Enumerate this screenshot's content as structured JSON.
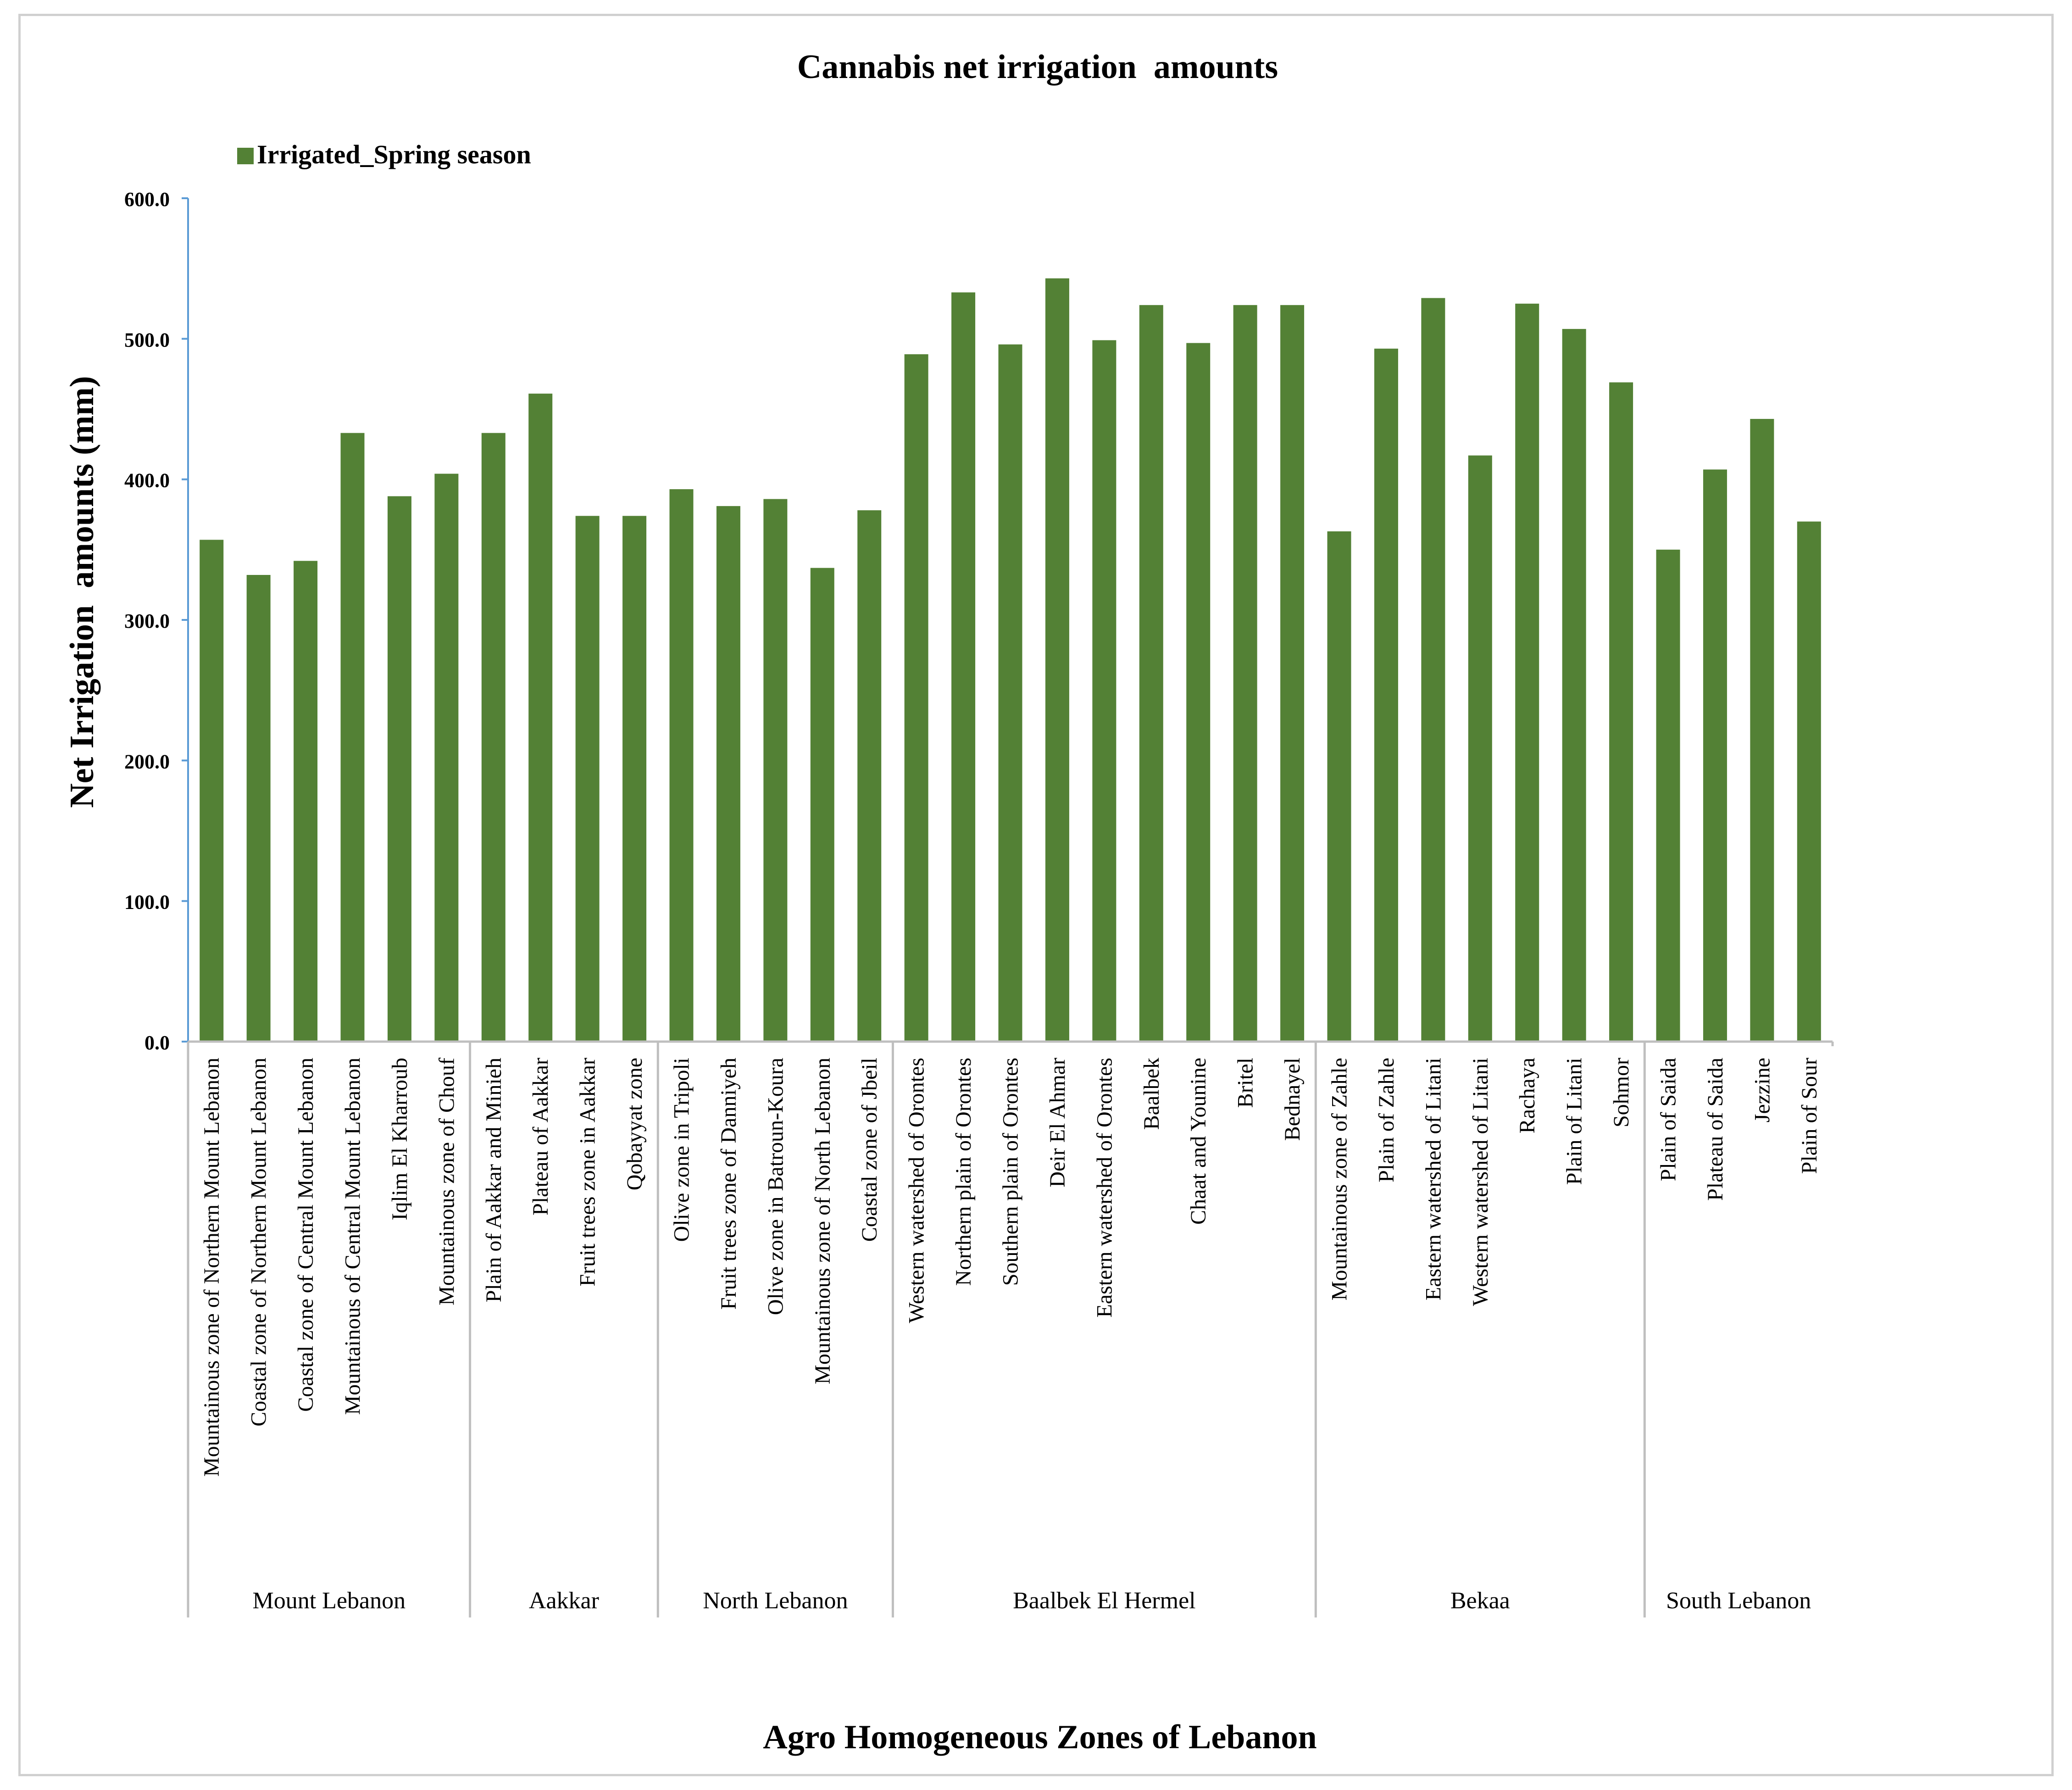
{
  "chart_data": {
    "type": "bar",
    "title": "Cannabis net irrigation  amounts",
    "xlabel": "Agro Homogeneous Zones of Lebanon",
    "ylabel": "Net Irrigation  amounts (mm)",
    "ylim": [
      0,
      600
    ],
    "yticks": [
      "0.0",
      "100.0",
      "200.0",
      "300.0",
      "400.0",
      "500.0",
      "600.0"
    ],
    "ytick_values": [
      0,
      100,
      200,
      300,
      400,
      500,
      600
    ],
    "grid": false,
    "legend_position": "top-left",
    "bar_color": "#538135",
    "axis_color": "#5b9bd5",
    "separator_color": "#bfbfbf",
    "categories": [
      "Mountainous zone of Northern Mount Lebanon",
      "Coastal zone of Northern Mount Lebanon",
      "Coastal zone of Central Mount Lebanon",
      "Mountainous of Central Mount Lebanon",
      "Iqlim El Kharroub",
      "Mountainous zone of Chouf",
      "Plain of Aakkar and Minieh",
      "Plateau of Aakkar",
      "Fruit trees zone in Aakkar",
      "Qobayyat zone",
      "Olive zone in Tripoli",
      "Fruit trees zone of Danniyeh",
      "Olive zone in Batroun-Koura",
      "Mountainous zone of North Lebanon",
      "Coastal zone of Jbeil",
      "Western watershed of Orontes",
      "Northern plain of Orontes",
      "Southern plain of Orontes",
      "Deir El Ahmar",
      "Eastern watershed of Orontes",
      "Baalbek",
      "Chaat and Younine",
      "Britel",
      "Bednayel",
      "Mountainous zone of Zahle",
      "Plain of Zahle",
      "Eastern watershed of Litani",
      "Western watershed of Litani",
      "Rachaya",
      "Plain of Litani",
      "Sohmor",
      "Plain of Saida",
      "Plateau of Saida",
      "Jezzine",
      "Plain of Sour"
    ],
    "groups": [
      {
        "name": "Mount Lebanon",
        "start": 0,
        "count": 6
      },
      {
        "name": "Aakkar",
        "start": 6,
        "count": 4
      },
      {
        "name": "North Lebanon",
        "start": 10,
        "count": 5
      },
      {
        "name": "Baalbek El Hermel",
        "start": 15,
        "count": 9
      },
      {
        "name": "Bekaa",
        "start": 24,
        "count": 7
      },
      {
        "name": "South Lebanon",
        "start": 31,
        "count": 4
      }
    ],
    "series": [
      {
        "name": "Irrigated_Spring season",
        "values": [
          357,
          332,
          342,
          433,
          388,
          404,
          433,
          461,
          374,
          374,
          393,
          381,
          386,
          337,
          378,
          489,
          533,
          496,
          543,
          499,
          524,
          497,
          524,
          524,
          363,
          493,
          529,
          417,
          525,
          507,
          469,
          350,
          407,
          443,
          370
        ]
      }
    ]
  }
}
